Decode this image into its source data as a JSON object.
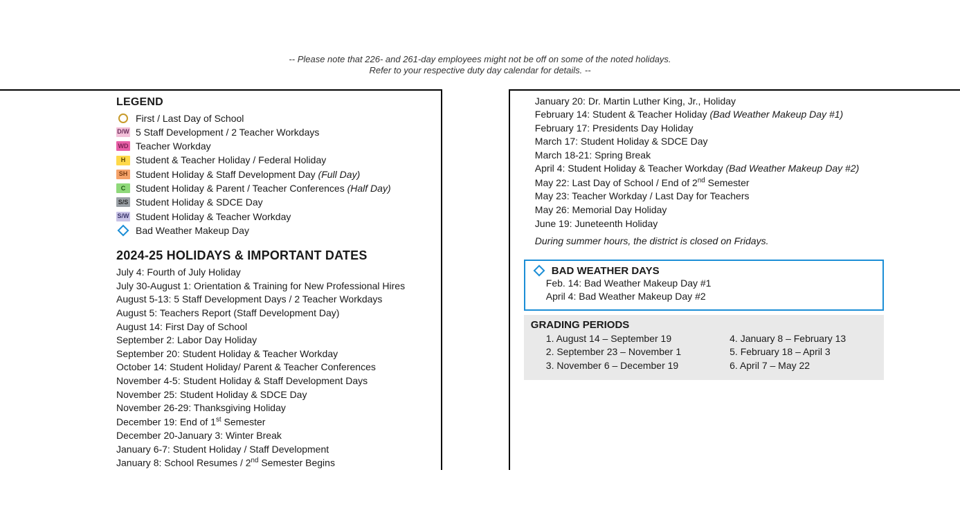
{
  "note_line1": "-- Please note that 226- and 261-day employees might not be off on some of the noted holidays.",
  "note_line2": "Refer to your respective duty day calendar for details. --",
  "legend": {
    "title": "LEGEND",
    "items": [
      {
        "icon_type": "circle",
        "label": "First / Last Day of School"
      },
      {
        "icon_type": "swatch",
        "code": "D/W",
        "swatch_class": "sw-dw",
        "label": "5 Staff Development / 2 Teacher Workdays"
      },
      {
        "icon_type": "swatch",
        "code": "WD",
        "swatch_class": "sw-wd",
        "label": "Teacher Workday"
      },
      {
        "icon_type": "swatch",
        "code": "H",
        "swatch_class": "sw-h",
        "label": "Student & Teacher Holiday / Federal Holiday"
      },
      {
        "icon_type": "swatch",
        "code": "SH",
        "swatch_class": "sw-sh",
        "label": "Student Holiday & Staff Development Day",
        "suffix_italic": "(Full Day)"
      },
      {
        "icon_type": "swatch",
        "code": "C",
        "swatch_class": "sw-c",
        "label": "Student Holiday & Parent / Teacher Conferences",
        "suffix_italic": "(Half Day)"
      },
      {
        "icon_type": "swatch",
        "code": "S/S",
        "swatch_class": "sw-ss",
        "label": "Student Holiday & SDCE Day"
      },
      {
        "icon_type": "swatch",
        "code": "S/W",
        "swatch_class": "sw-sw",
        "label": "Student Holiday & Teacher Workday"
      },
      {
        "icon_type": "diamond",
        "label": "Bad Weather Makeup Day"
      }
    ]
  },
  "holidays": {
    "title": "2024-25 HOLIDAYS & IMPORTANT DATES",
    "left": [
      "July 4: Fourth of July Holiday",
      "July 30-August 1:  Orientation & Training for New Professional Hires",
      "August 5-13:  5 Staff Development Days / 2 Teacher Workdays",
      "August 5:  Teachers Report (Staff Development Day)",
      "August 14:  First Day of School",
      "September 2:  Labor Day Holiday",
      "September 20: Student Holiday & Teacher Workday",
      "October 14:  Student Holiday/ Parent & Teacher Conferences",
      "November 4-5:  Student Holiday & Staff Development Days",
      "November 25:  Student Holiday & SDCE Day",
      "November 26-29:  Thanksgiving Holiday",
      "December 19:  End of 1ˢᵗ Semester",
      "December 20-January 3:  Winter Break",
      "January 6-7:  Student Holiday / Staff Development",
      "January 8:  School Resumes / 2ⁿᵈ Semester Begins"
    ],
    "right": [
      {
        "text": "January 20:  Dr. Martin Luther King, Jr., Holiday"
      },
      {
        "text": "February 14: Student & Teacher Holiday ",
        "suffix_italic": "(Bad Weather Makeup Day #1)"
      },
      {
        "text": "February 17:  Presidents Day Holiday"
      },
      {
        "text": "March 17:  Student Holiday & SDCE Day"
      },
      {
        "text": "March 18-21:  Spring Break"
      },
      {
        "text": "April 4: Student Holiday & Teacher Workday ",
        "suffix_italic": "(Bad Weather Makeup Day #2)"
      },
      {
        "text": "May 22:  Last Day of School / End of 2ⁿᵈ Semester"
      },
      {
        "text": "May 23:  Teacher Workday / Last Day for Teachers"
      },
      {
        "text": "May 26:  Memorial Day Holiday"
      },
      {
        "text": "June 19: Juneteenth Holiday"
      }
    ],
    "summer_note": "During summer hours, the district is closed on Fridays."
  },
  "bad_weather": {
    "title": "BAD WEATHER DAYS",
    "lines": [
      "Feb. 14:  Bad Weather Makeup Day #1",
      "April 4:  Bad Weather Makeup Day #2"
    ]
  },
  "grading": {
    "title": "GRADING PERIODS",
    "left": [
      "1.  August 14 – September 19",
      "2.  September 23  – November 1",
      "3.  November 6 – December 19"
    ],
    "right": [
      "4.  January 8 – February 13",
      "5.  February 18 – April 3",
      "6.  April 7 – May 22"
    ]
  },
  "colors": {
    "accent_blue": "#1b8ed6",
    "circle_gold": "#c79a2a",
    "grading_bg": "#e9e9e9"
  }
}
